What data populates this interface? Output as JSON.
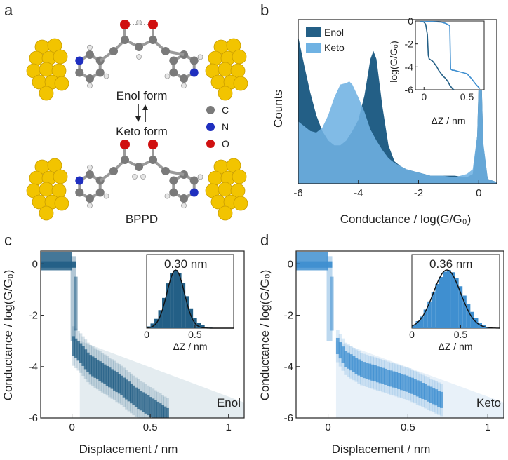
{
  "panels": {
    "a": {
      "label": "a",
      "upper_form": "Enol form",
      "lower_form": "Keto form",
      "molecule_name": "BPPD",
      "atom_legend": [
        {
          "symbol": "C",
          "color": "#7a7a7a"
        },
        {
          "symbol": "N",
          "color": "#1f2fbf"
        },
        {
          "symbol": "O",
          "color": "#d01010"
        }
      ],
      "electrode_color": "#f2c400"
    },
    "b": {
      "label": "b"
    },
    "c": {
      "label": "c",
      "tag": "Enol",
      "inset_peak_label": "0.30 nm"
    },
    "d": {
      "label": "d",
      "tag": "Keto",
      "inset_peak_label": "0.36 nm"
    }
  },
  "colors": {
    "enol": "#235f86",
    "keto": "#6fb2e3",
    "keto_dark": "#3f8fd0",
    "fit": "#111111"
  },
  "chart_data": [
    {
      "id": "b",
      "type": "area",
      "xlabel": "Conductance / log(G/G₀)",
      "ylabel": "Counts",
      "xlim": [
        -6,
        0.6
      ],
      "xticks": [
        -6,
        -4,
        -2,
        0
      ],
      "legend": "top-left",
      "series": [
        {
          "name": "Enol",
          "x": [
            -6.0,
            -5.8,
            -5.6,
            -5.4,
            -5.2,
            -5.0,
            -4.8,
            -4.6,
            -4.4,
            -4.2,
            -4.0,
            -3.8,
            -3.6,
            -3.5,
            -3.4,
            -3.2,
            -3.0,
            -2.8,
            -2.6,
            -2.4,
            -2.2,
            -2.0,
            -1.6,
            -1.2,
            -0.8,
            -0.4,
            -0.2,
            -0.05,
            0.05,
            0.15,
            0.3,
            0.45,
            0.6
          ],
          "values": [
            0.92,
            0.74,
            0.57,
            0.43,
            0.33,
            0.27,
            0.24,
            0.24,
            0.27,
            0.33,
            0.4,
            0.55,
            0.78,
            0.83,
            0.78,
            0.48,
            0.24,
            0.14,
            0.11,
            0.09,
            0.08,
            0.07,
            0.05,
            0.05,
            0.05,
            0.04,
            0.06,
            0.3,
            1.0,
            0.25,
            0.03,
            0.02,
            0.01
          ]
        },
        {
          "name": "Keto",
          "x": [
            -6.0,
            -5.8,
            -5.6,
            -5.4,
            -5.2,
            -5.0,
            -4.8,
            -4.6,
            -4.4,
            -4.3,
            -4.2,
            -4.0,
            -3.8,
            -3.6,
            -3.4,
            -3.2,
            -3.0,
            -2.8,
            -2.6,
            -2.4,
            -2.2,
            -2.0,
            -1.6,
            -1.2,
            -0.8,
            -0.4,
            -0.2,
            -0.05,
            0.05,
            0.15,
            0.3,
            0.45,
            0.6
          ],
          "values": [
            0.39,
            0.36,
            0.33,
            0.32,
            0.35,
            0.43,
            0.54,
            0.62,
            0.63,
            0.64,
            0.62,
            0.54,
            0.45,
            0.34,
            0.27,
            0.21,
            0.16,
            0.13,
            0.11,
            0.09,
            0.08,
            0.07,
            0.05,
            0.05,
            0.04,
            0.06,
            0.09,
            0.3,
            0.96,
            0.26,
            0.03,
            0.02,
            0.01
          ]
        }
      ],
      "inset": {
        "xlabel": "ΔZ / nm",
        "ylabel": "log(G/G₀)",
        "xlim": [
          -0.1,
          0.7
        ],
        "ylim": [
          -6,
          0
        ],
        "xticks": [
          0.0,
          0.5
        ],
        "yticks": [
          -6,
          -4,
          -2,
          0
        ],
        "traces": [
          {
            "name": "Enol",
            "x": [
              -0.05,
              0.0,
              0.02,
              0.04,
              0.05,
              0.06,
              0.08,
              0.1,
              0.12,
              0.15,
              0.17,
              0.2,
              0.22,
              0.25,
              0.28,
              0.3,
              0.33,
              0.35
            ],
            "values": [
              0.0,
              -0.1,
              -0.3,
              -1.2,
              -3.0,
              -3.3,
              -3.4,
              -3.5,
              -3.7,
              -4.0,
              -4.3,
              -4.6,
              -4.8,
              -5.0,
              -5.3,
              -5.6,
              -5.9,
              -6.0
            ]
          },
          {
            "name": "Keto",
            "x": [
              -0.05,
              0.0,
              0.1,
              0.2,
              0.25,
              0.3,
              0.31,
              0.33,
              0.35,
              0.4,
              0.45,
              0.5,
              0.55,
              0.6,
              0.65
            ],
            "values": [
              0.0,
              0.0,
              -0.05,
              -0.1,
              -0.2,
              -0.4,
              -4.2,
              -4.3,
              -4.3,
              -4.4,
              -4.5,
              -4.6,
              -5.0,
              -5.5,
              -5.9
            ]
          }
        ]
      }
    },
    {
      "id": "c",
      "type": "heatmap",
      "xlabel": "Displacement / nm",
      "ylabel": "Conductance / log(G/G₀)",
      "xlim": [
        -0.2,
        1.1
      ],
      "ylim": [
        -6,
        0.5
      ],
      "xticks": [
        0.0,
        0.5,
        1.0
      ],
      "yticks": [
        -6,
        -4,
        -2,
        0
      ],
      "band": {
        "x": [
          0.0,
          0.05,
          0.1,
          0.2,
          0.3,
          0.4,
          0.5,
          0.6
        ],
        "values": [
          -3.2,
          -3.5,
          -3.9,
          -4.3,
          -4.7,
          -5.2,
          -5.6,
          -6.0
        ]
      },
      "inset": {
        "xlabel": "ΔZ / nm",
        "xticks": [
          0.0,
          0.5
        ],
        "xlim": [
          0,
          0.9
        ],
        "bins": [
          0.02,
          0.06,
          0.1,
          0.14,
          0.18,
          0.22,
          0.26,
          0.3,
          0.34,
          0.38,
          0.42,
          0.46,
          0.5,
          0.54,
          0.58,
          0.62,
          0.66
        ],
        "values": [
          0.03,
          0.08,
          0.16,
          0.31,
          0.52,
          0.77,
          0.94,
          1.0,
          0.95,
          0.78,
          0.55,
          0.34,
          0.18,
          0.09,
          0.05,
          0.02,
          0.01
        ],
        "fit_center": 0.3,
        "fit_sigma": 0.09
      }
    },
    {
      "id": "d",
      "type": "heatmap",
      "xlabel": "Displacement / nm",
      "ylabel": "Conductance / log(G/G₀)",
      "xlim": [
        -0.2,
        1.1
      ],
      "ylim": [
        -6,
        0.5
      ],
      "xticks": [
        0.0,
        0.5,
        1.0
      ],
      "yticks": [
        -6,
        -4,
        -2,
        0
      ],
      "band": {
        "x": [
          0.05,
          0.1,
          0.2,
          0.3,
          0.4,
          0.5,
          0.6,
          0.7
        ],
        "values": [
          -3.2,
          -3.7,
          -4.1,
          -4.3,
          -4.5,
          -4.7,
          -5.0,
          -5.3
        ]
      },
      "inset": {
        "xlabel": "ΔZ / nm",
        "xticks": [
          0.0,
          0.5
        ],
        "xlim": [
          0,
          0.9
        ],
        "bins": [
          0.02,
          0.06,
          0.1,
          0.14,
          0.18,
          0.22,
          0.26,
          0.3,
          0.34,
          0.38,
          0.42,
          0.46,
          0.5,
          0.54,
          0.58,
          0.62,
          0.66,
          0.7,
          0.74,
          0.78
        ],
        "values": [
          0.06,
          0.12,
          0.2,
          0.32,
          0.46,
          0.62,
          0.76,
          0.88,
          0.97,
          1.0,
          0.96,
          0.86,
          0.72,
          0.56,
          0.41,
          0.28,
          0.17,
          0.09,
          0.05,
          0.02
        ],
        "fit_center": 0.36,
        "fit_sigma": 0.14
      }
    }
  ]
}
